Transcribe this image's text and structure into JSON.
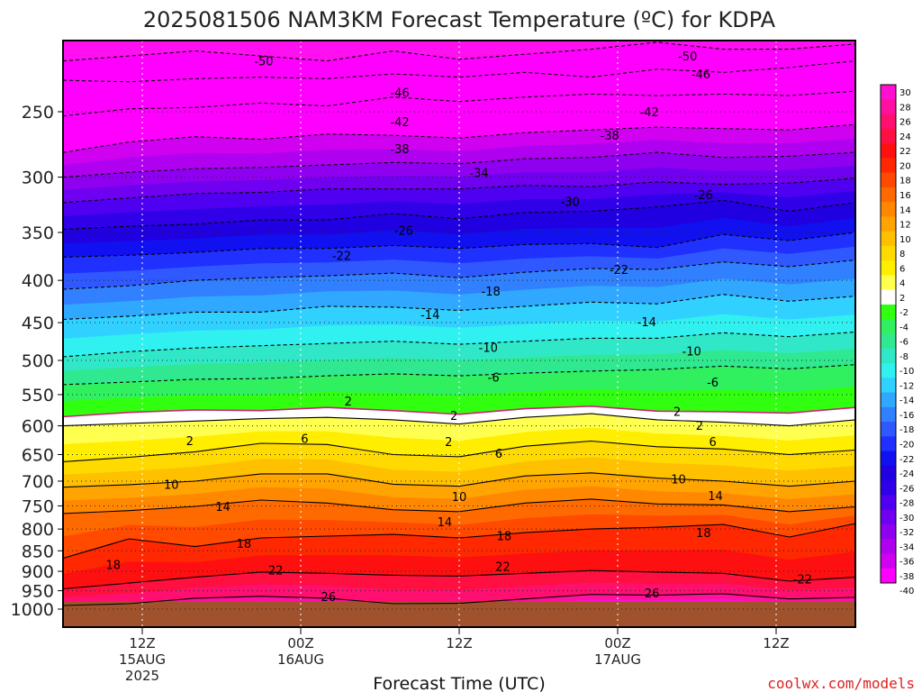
{
  "chart_data": {
    "type": "heatmap",
    "title": "2025081506 NAM3KM Forecast Temperature (ºC) for KDPA",
    "xlabel": "Forecast Time (UTC)",
    "ylabel": "",
    "credit": "coolwx.com/models",
    "y_scale": "log",
    "y_ticks": [
      250,
      300,
      350,
      400,
      450,
      500,
      550,
      600,
      650,
      700,
      750,
      800,
      850,
      900,
      950,
      1000
    ],
    "y_range_hpa": [
      200,
      1025
    ],
    "x_range_hours_from_06z_15aug": [
      0,
      60
    ],
    "x_ticks": [
      {
        "hour": 6,
        "l1": "12Z",
        "l2": "15AUG",
        "l3": "2025"
      },
      {
        "hour": 18,
        "l1": "00Z",
        "l2": "16AUG",
        "l3": ""
      },
      {
        "hour": 30,
        "l1": "12Z",
        "l2": "",
        "l3": ""
      },
      {
        "hour": 42,
        "l1": "00Z",
        "l2": "17AUG",
        "l3": ""
      },
      {
        "hour": 54,
        "l1": "12Z",
        "l2": "",
        "l3": ""
      }
    ],
    "vertical_gridlines_hours": [
      6,
      18,
      30,
      42,
      54
    ],
    "horizontal_gridlines_hpa": [
      250,
      300,
      350,
      400,
      450,
      500,
      550,
      600,
      650,
      700,
      750,
      800,
      850,
      900,
      950,
      1000
    ],
    "colorbar": {
      "labels": [
        "30",
        "28",
        "26",
        "24",
        "22",
        "20",
        "18",
        "16",
        "14",
        "12",
        "10",
        "8",
        "6",
        "4",
        "2",
        "-2",
        "-4",
        "-6",
        "-8",
        "-10",
        "-12",
        "-14",
        "-16",
        "-18",
        "-20",
        "-22",
        "-24",
        "-26",
        "-28",
        "-30",
        "-32",
        "-34",
        "-36",
        "-38",
        "-40"
      ],
      "colors": [
        "#ff10d0",
        "#ff10a0",
        "#ff1070",
        "#ff1040",
        "#ff1010",
        "#ff2800",
        "#ff4a00",
        "#ff6a00",
        "#ff8800",
        "#ffa400",
        "#ffc000",
        "#ffda00",
        "#ffee00",
        "#ffff50",
        "#ffffff",
        "#30ff10",
        "#30f060",
        "#30e890",
        "#30e8c8",
        "#30f0f0",
        "#30d0ff",
        "#30a8ff",
        "#3080ff",
        "#3058ff",
        "#2030ff",
        "#1010f0",
        "#2000e0",
        "#3000e8",
        "#5000f0",
        "#7000f0",
        "#9000f0",
        "#b000f0",
        "#d000f0",
        "#ff00ff"
      ]
    },
    "isotherms": [
      {
        "value": -50,
        "label": "-50",
        "p": [
          217,
          214,
          211,
          214,
          217,
          211,
          216,
          213,
          210,
          206,
          210,
          210,
          207
        ]
      },
      {
        "value": -46,
        "label": "-46",
        "p": [
          229,
          230,
          228,
          227,
          228,
          225,
          227,
          224,
          227,
          222,
          224,
          221,
          217
        ]
      },
      {
        "value": -42,
        "label": "-42",
        "p": [
          253,
          248,
          247,
          244,
          246,
          240,
          243,
          240,
          238,
          239,
          238,
          239,
          236
        ]
      },
      {
        "value": -38,
        "label": "-38",
        "p": [
          280,
          272,
          268,
          270,
          266,
          267,
          269,
          265,
          263,
          261,
          262,
          263,
          259
        ]
      },
      {
        "value": -34,
        "label": "-34",
        "p": [
          300,
          296,
          293,
          292,
          290,
          288,
          289,
          285,
          284,
          280,
          284,
          283,
          280
        ]
      },
      {
        "value": -30,
        "label": "-30",
        "p": [
          322,
          318,
          314,
          313,
          310,
          310,
          310,
          307,
          308,
          304,
          306,
          305,
          301
        ]
      },
      {
        "value": -26,
        "label": "-26",
        "p": [
          347,
          344,
          342,
          338,
          338,
          332,
          337,
          331,
          330,
          326,
          320,
          330,
          322
        ]
      },
      {
        "value": -22,
        "label": "-22",
        "p": [
          375,
          373,
          370,
          366,
          366,
          363,
          366,
          362,
          361,
          365,
          352,
          358,
          350
        ]
      },
      {
        "value": -18,
        "label": "-18",
        "p": [
          410,
          406,
          400,
          397,
          395,
          392,
          397,
          391,
          387,
          388,
          380,
          385,
          378
        ]
      },
      {
        "value": -14,
        "label": "-14",
        "p": [
          446,
          442,
          437,
          437,
          430,
          431,
          435,
          430,
          425,
          427,
          416,
          424,
          418
        ]
      },
      {
        "value": -10,
        "label": "-10",
        "p": [
          495,
          488,
          483,
          480,
          477,
          474,
          478,
          474,
          470,
          470,
          463,
          468,
          462
        ]
      },
      {
        "value": -6,
        "label": "-6",
        "p": [
          535,
          531,
          527,
          526,
          522,
          519,
          522,
          518,
          515,
          513,
          508,
          512,
          506
        ]
      },
      {
        "value": -2,
        "label": "-2",
        "p": [
          585,
          578,
          574,
          575,
          570,
          575,
          581,
          572,
          568,
          576,
          577,
          579,
          570
        ]
      },
      {
        "value": 2,
        "label": "2",
        "p": [
          600,
          596,
          592,
          588,
          586,
          590,
          597,
          586,
          580,
          590,
          594,
          600,
          590
        ]
      },
      {
        "value": 6,
        "label": "6",
        "p": [
          663,
          655,
          645,
          630,
          632,
          650,
          654,
          635,
          626,
          636,
          640,
          650,
          642
        ]
      },
      {
        "value": 10,
        "label": "10",
        "p": [
          712,
          707,
          700,
          686,
          686,
          706,
          710,
          690,
          684,
          694,
          700,
          710,
          700
        ]
      },
      {
        "value": 14,
        "label": "14",
        "p": [
          766,
          760,
          751,
          738,
          744,
          758,
          762,
          744,
          736,
          746,
          748,
          762,
          752
        ]
      },
      {
        "value": 18,
        "label": "18",
        "p": [
          868,
          822,
          840,
          820,
          816,
          812,
          820,
          808,
          800,
          796,
          790,
          818,
          788
        ]
      },
      {
        "value": 22,
        "label": "22",
        "p": [
          945,
          930,
          915,
          902,
          905,
          910,
          912,
          905,
          898,
          902,
          905,
          925,
          915
        ]
      },
      {
        "value": 26,
        "label": "26",
        "p": [
          990,
          985,
          970,
          965,
          970,
          985,
          984,
          972,
          960,
          962,
          958,
          972,
          968
        ]
      }
    ],
    "annotations": [
      {
        "text": "-50",
        "h": 15.2,
        "p": 217
      },
      {
        "text": "-46",
        "h": 25.5,
        "p": 237
      },
      {
        "text": "-42",
        "h": 25.5,
        "p": 257
      },
      {
        "text": "-38",
        "h": 25.5,
        "p": 277
      },
      {
        "text": "-34",
        "h": 31.5,
        "p": 296
      },
      {
        "text": "-30",
        "h": 38.4,
        "p": 321
      },
      {
        "text": "-26",
        "h": 25.8,
        "p": 348
      },
      {
        "text": "-22",
        "h": 21.1,
        "p": 373
      },
      {
        "text": "-18",
        "h": 32.4,
        "p": 412
      },
      {
        "text": "-14",
        "h": 27.8,
        "p": 440
      },
      {
        "text": "-10",
        "h": 32.2,
        "p": 482
      },
      {
        "text": "-6",
        "h": 32.6,
        "p": 524
      },
      {
        "text": "2",
        "h": 21.6,
        "p": 560
      },
      {
        "text": "2",
        "h": 29.6,
        "p": 583
      },
      {
        "text": "2",
        "h": 9.6,
        "p": 625
      },
      {
        "text": "6",
        "h": 18.3,
        "p": 621
      },
      {
        "text": "2",
        "h": 29.2,
        "p": 627
      },
      {
        "text": "6",
        "h": 33.0,
        "p": 648
      },
      {
        "text": "10",
        "h": 8.2,
        "p": 706
      },
      {
        "text": "10",
        "h": 30.0,
        "p": 731
      },
      {
        "text": "14",
        "h": 12.1,
        "p": 751
      },
      {
        "text": "14",
        "h": 28.9,
        "p": 784
      },
      {
        "text": "18",
        "h": 3.8,
        "p": 883
      },
      {
        "text": "18",
        "h": 13.7,
        "p": 832
      },
      {
        "text": "18",
        "h": 33.4,
        "p": 815
      },
      {
        "text": "22",
        "h": 16.1,
        "p": 896
      },
      {
        "text": "22",
        "h": 33.3,
        "p": 888
      },
      {
        "text": "26",
        "h": 20.1,
        "p": 965
      },
      {
        "text": "26",
        "h": 44.6,
        "p": 956
      },
      {
        "text": "18",
        "h": 48.5,
        "p": 808
      },
      {
        "text": "14",
        "h": 49.4,
        "p": 729
      },
      {
        "text": "10",
        "h": 46.6,
        "p": 696
      },
      {
        "text": "6",
        "h": 49.2,
        "p": 627
      },
      {
        "text": "2",
        "h": 48.2,
        "p": 599
      },
      {
        "text": "2",
        "h": 46.5,
        "p": 576
      },
      {
        "text": "-6",
        "h": 49.2,
        "p": 531
      },
      {
        "text": "-10",
        "h": 47.6,
        "p": 487
      },
      {
        "text": "-14",
        "h": 44.2,
        "p": 449
      },
      {
        "text": "-22",
        "h": 42.1,
        "p": 388
      },
      {
        "text": "-26",
        "h": 48.5,
        "p": 315
      },
      {
        "text": "-30",
        "h": 38.4,
        "p": 321
      },
      {
        "text": "-38",
        "h": 41.4,
        "p": 267
      },
      {
        "text": "-42",
        "h": 44.4,
        "p": 250
      },
      {
        "text": "-46",
        "h": 48.3,
        "p": 225
      },
      {
        "text": "-50",
        "h": 47.3,
        "p": 214
      },
      {
        "text": "-22",
        "h": 56.0,
        "p": 919
      }
    ]
  }
}
